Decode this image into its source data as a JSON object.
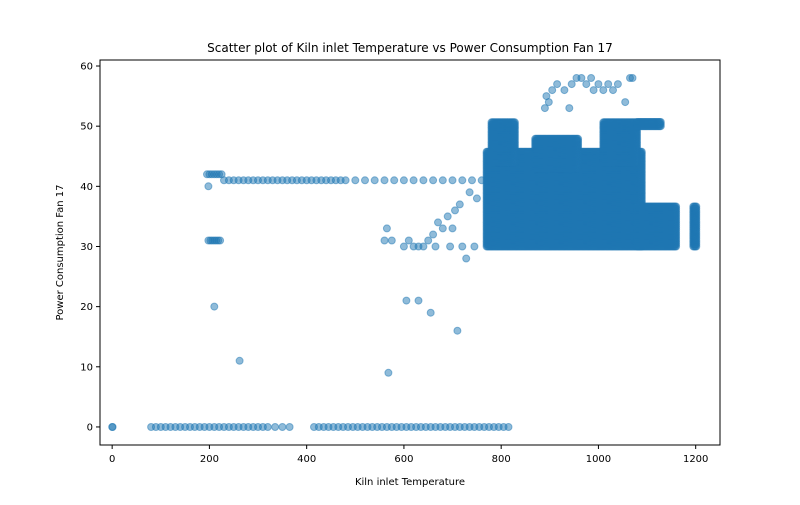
{
  "chart_data": {
    "type": "scatter",
    "title": "Scatter plot of Kiln inlet Temperature vs Power Consumption Fan 17",
    "xlabel": "Kiln inlet Temperature",
    "ylabel": "Power Consumption Fan 17",
    "xlim": [
      -25,
      1250
    ],
    "ylim": [
      -3,
      61
    ],
    "xticks": [
      0,
      200,
      400,
      600,
      800,
      1000,
      1200
    ],
    "yticks": [
      0,
      10,
      20,
      30,
      40,
      50,
      60
    ],
    "grid": false,
    "legend": "none",
    "marker_color": "#1f77b4",
    "marker_alpha": 0.5,
    "series": [
      {
        "points": [
          [
            0,
            0
          ],
          [
            1,
            0
          ],
          [
            80,
            0
          ],
          [
            90,
            0
          ],
          [
            100,
            0
          ],
          [
            110,
            0
          ],
          [
            120,
            0
          ],
          [
            130,
            0
          ],
          [
            140,
            0
          ],
          [
            150,
            0
          ],
          [
            160,
            0
          ],
          [
            170,
            0
          ],
          [
            180,
            0
          ],
          [
            190,
            0
          ],
          [
            200,
            0
          ],
          [
            210,
            0
          ],
          [
            220,
            0
          ],
          [
            230,
            0
          ],
          [
            240,
            0
          ],
          [
            250,
            0
          ],
          [
            260,
            0
          ],
          [
            270,
            0
          ],
          [
            280,
            0
          ],
          [
            290,
            0
          ],
          [
            300,
            0
          ],
          [
            310,
            0
          ],
          [
            320,
            0
          ],
          [
            335,
            0
          ],
          [
            350,
            0
          ],
          [
            365,
            0
          ],
          [
            415,
            0
          ],
          [
            425,
            0
          ],
          [
            435,
            0
          ],
          [
            445,
            0
          ],
          [
            455,
            0
          ],
          [
            465,
            0
          ],
          [
            475,
            0
          ],
          [
            485,
            0
          ],
          [
            495,
            0
          ],
          [
            505,
            0
          ],
          [
            515,
            0
          ],
          [
            525,
            0
          ],
          [
            535,
            0
          ],
          [
            545,
            0
          ],
          [
            555,
            0
          ],
          [
            565,
            0
          ],
          [
            575,
            0
          ],
          [
            585,
            0
          ],
          [
            595,
            0
          ],
          [
            605,
            0
          ],
          [
            615,
            0
          ],
          [
            625,
            0
          ],
          [
            635,
            0
          ],
          [
            645,
            0
          ],
          [
            655,
            0
          ],
          [
            665,
            0
          ],
          [
            675,
            0
          ],
          [
            685,
            0
          ],
          [
            695,
            0
          ],
          [
            705,
            0
          ],
          [
            715,
            0
          ],
          [
            725,
            0
          ],
          [
            735,
            0
          ],
          [
            745,
            0
          ],
          [
            755,
            0
          ],
          [
            765,
            0
          ],
          [
            775,
            0
          ],
          [
            785,
            0
          ],
          [
            795,
            0
          ],
          [
            805,
            0
          ],
          [
            815,
            0
          ],
          [
            195,
            42
          ],
          [
            200,
            42
          ],
          [
            205,
            42
          ],
          [
            210,
            42
          ],
          [
            215,
            42
          ],
          [
            220,
            42
          ],
          [
            225,
            42
          ],
          [
            230,
            41
          ],
          [
            240,
            41
          ],
          [
            250,
            41
          ],
          [
            260,
            41
          ],
          [
            270,
            41
          ],
          [
            280,
            41
          ],
          [
            290,
            41
          ],
          [
            300,
            41
          ],
          [
            310,
            41
          ],
          [
            320,
            41
          ],
          [
            330,
            41
          ],
          [
            340,
            41
          ],
          [
            350,
            41
          ],
          [
            360,
            41
          ],
          [
            370,
            41
          ],
          [
            380,
            41
          ],
          [
            390,
            41
          ],
          [
            400,
            41
          ],
          [
            410,
            41
          ],
          [
            420,
            41
          ],
          [
            430,
            41
          ],
          [
            440,
            41
          ],
          [
            450,
            41
          ],
          [
            460,
            41
          ],
          [
            470,
            41
          ],
          [
            480,
            41
          ],
          [
            500,
            41
          ],
          [
            520,
            41
          ],
          [
            540,
            41
          ],
          [
            560,
            41
          ],
          [
            580,
            41
          ],
          [
            600,
            41
          ],
          [
            620,
            41
          ],
          [
            640,
            41
          ],
          [
            660,
            41
          ],
          [
            680,
            41
          ],
          [
            700,
            41
          ],
          [
            720,
            41
          ],
          [
            740,
            41
          ],
          [
            760,
            41
          ],
          [
            198,
            40
          ],
          [
            198,
            31
          ],
          [
            202,
            31
          ],
          [
            206,
            31
          ],
          [
            210,
            31
          ],
          [
            214,
            31
          ],
          [
            218,
            31
          ],
          [
            222,
            31
          ],
          [
            210,
            20
          ],
          [
            262,
            11
          ],
          [
            568,
            9
          ],
          [
            605,
            21
          ],
          [
            630,
            21
          ],
          [
            655,
            19
          ],
          [
            710,
            16
          ],
          [
            728,
            28
          ],
          [
            560,
            31
          ],
          [
            565,
            33
          ],
          [
            575,
            31
          ],
          [
            600,
            30
          ],
          [
            610,
            31
          ],
          [
            620,
            30
          ],
          [
            630,
            30
          ],
          [
            640,
            30
          ],
          [
            650,
            31
          ],
          [
            660,
            32
          ],
          [
            665,
            30
          ],
          [
            670,
            34
          ],
          [
            680,
            33
          ],
          [
            690,
            35
          ],
          [
            695,
            30
          ],
          [
            700,
            33
          ],
          [
            705,
            36
          ],
          [
            715,
            37
          ],
          [
            720,
            30
          ],
          [
            735,
            39
          ],
          [
            745,
            30
          ],
          [
            750,
            38
          ],
          [
            890,
            53
          ],
          [
            893,
            55
          ],
          [
            898,
            54
          ],
          [
            905,
            56
          ],
          [
            915,
            57
          ],
          [
            930,
            56
          ],
          [
            940,
            53
          ],
          [
            945,
            57
          ],
          [
            955,
            58
          ],
          [
            965,
            58
          ],
          [
            975,
            57
          ],
          [
            985,
            58
          ],
          [
            990,
            56
          ],
          [
            1000,
            57
          ],
          [
            1010,
            56
          ],
          [
            1020,
            57
          ],
          [
            1030,
            56
          ],
          [
            1040,
            57
          ],
          [
            1055,
            54
          ],
          [
            1065,
            58
          ],
          [
            1070,
            58
          ]
        ]
      }
    ],
    "dense_regions": [
      {
        "x": [
          770,
          1090
        ],
        "y": [
          30,
          46
        ]
      },
      {
        "x": [
          780,
          830
        ],
        "y": [
          44,
          51
        ]
      },
      {
        "x": [
          870,
          960
        ],
        "y": [
          43,
          48
        ]
      },
      {
        "x": [
          1010,
          1080
        ],
        "y": [
          44,
          51
        ]
      },
      {
        "x": [
          1080,
          1160
        ],
        "y": [
          30,
          37
        ]
      },
      {
        "x": [
          1080,
          1130
        ],
        "y": [
          50,
          51
        ]
      },
      {
        "x": [
          1195,
          1202
        ],
        "y": [
          30,
          37
        ]
      }
    ]
  }
}
